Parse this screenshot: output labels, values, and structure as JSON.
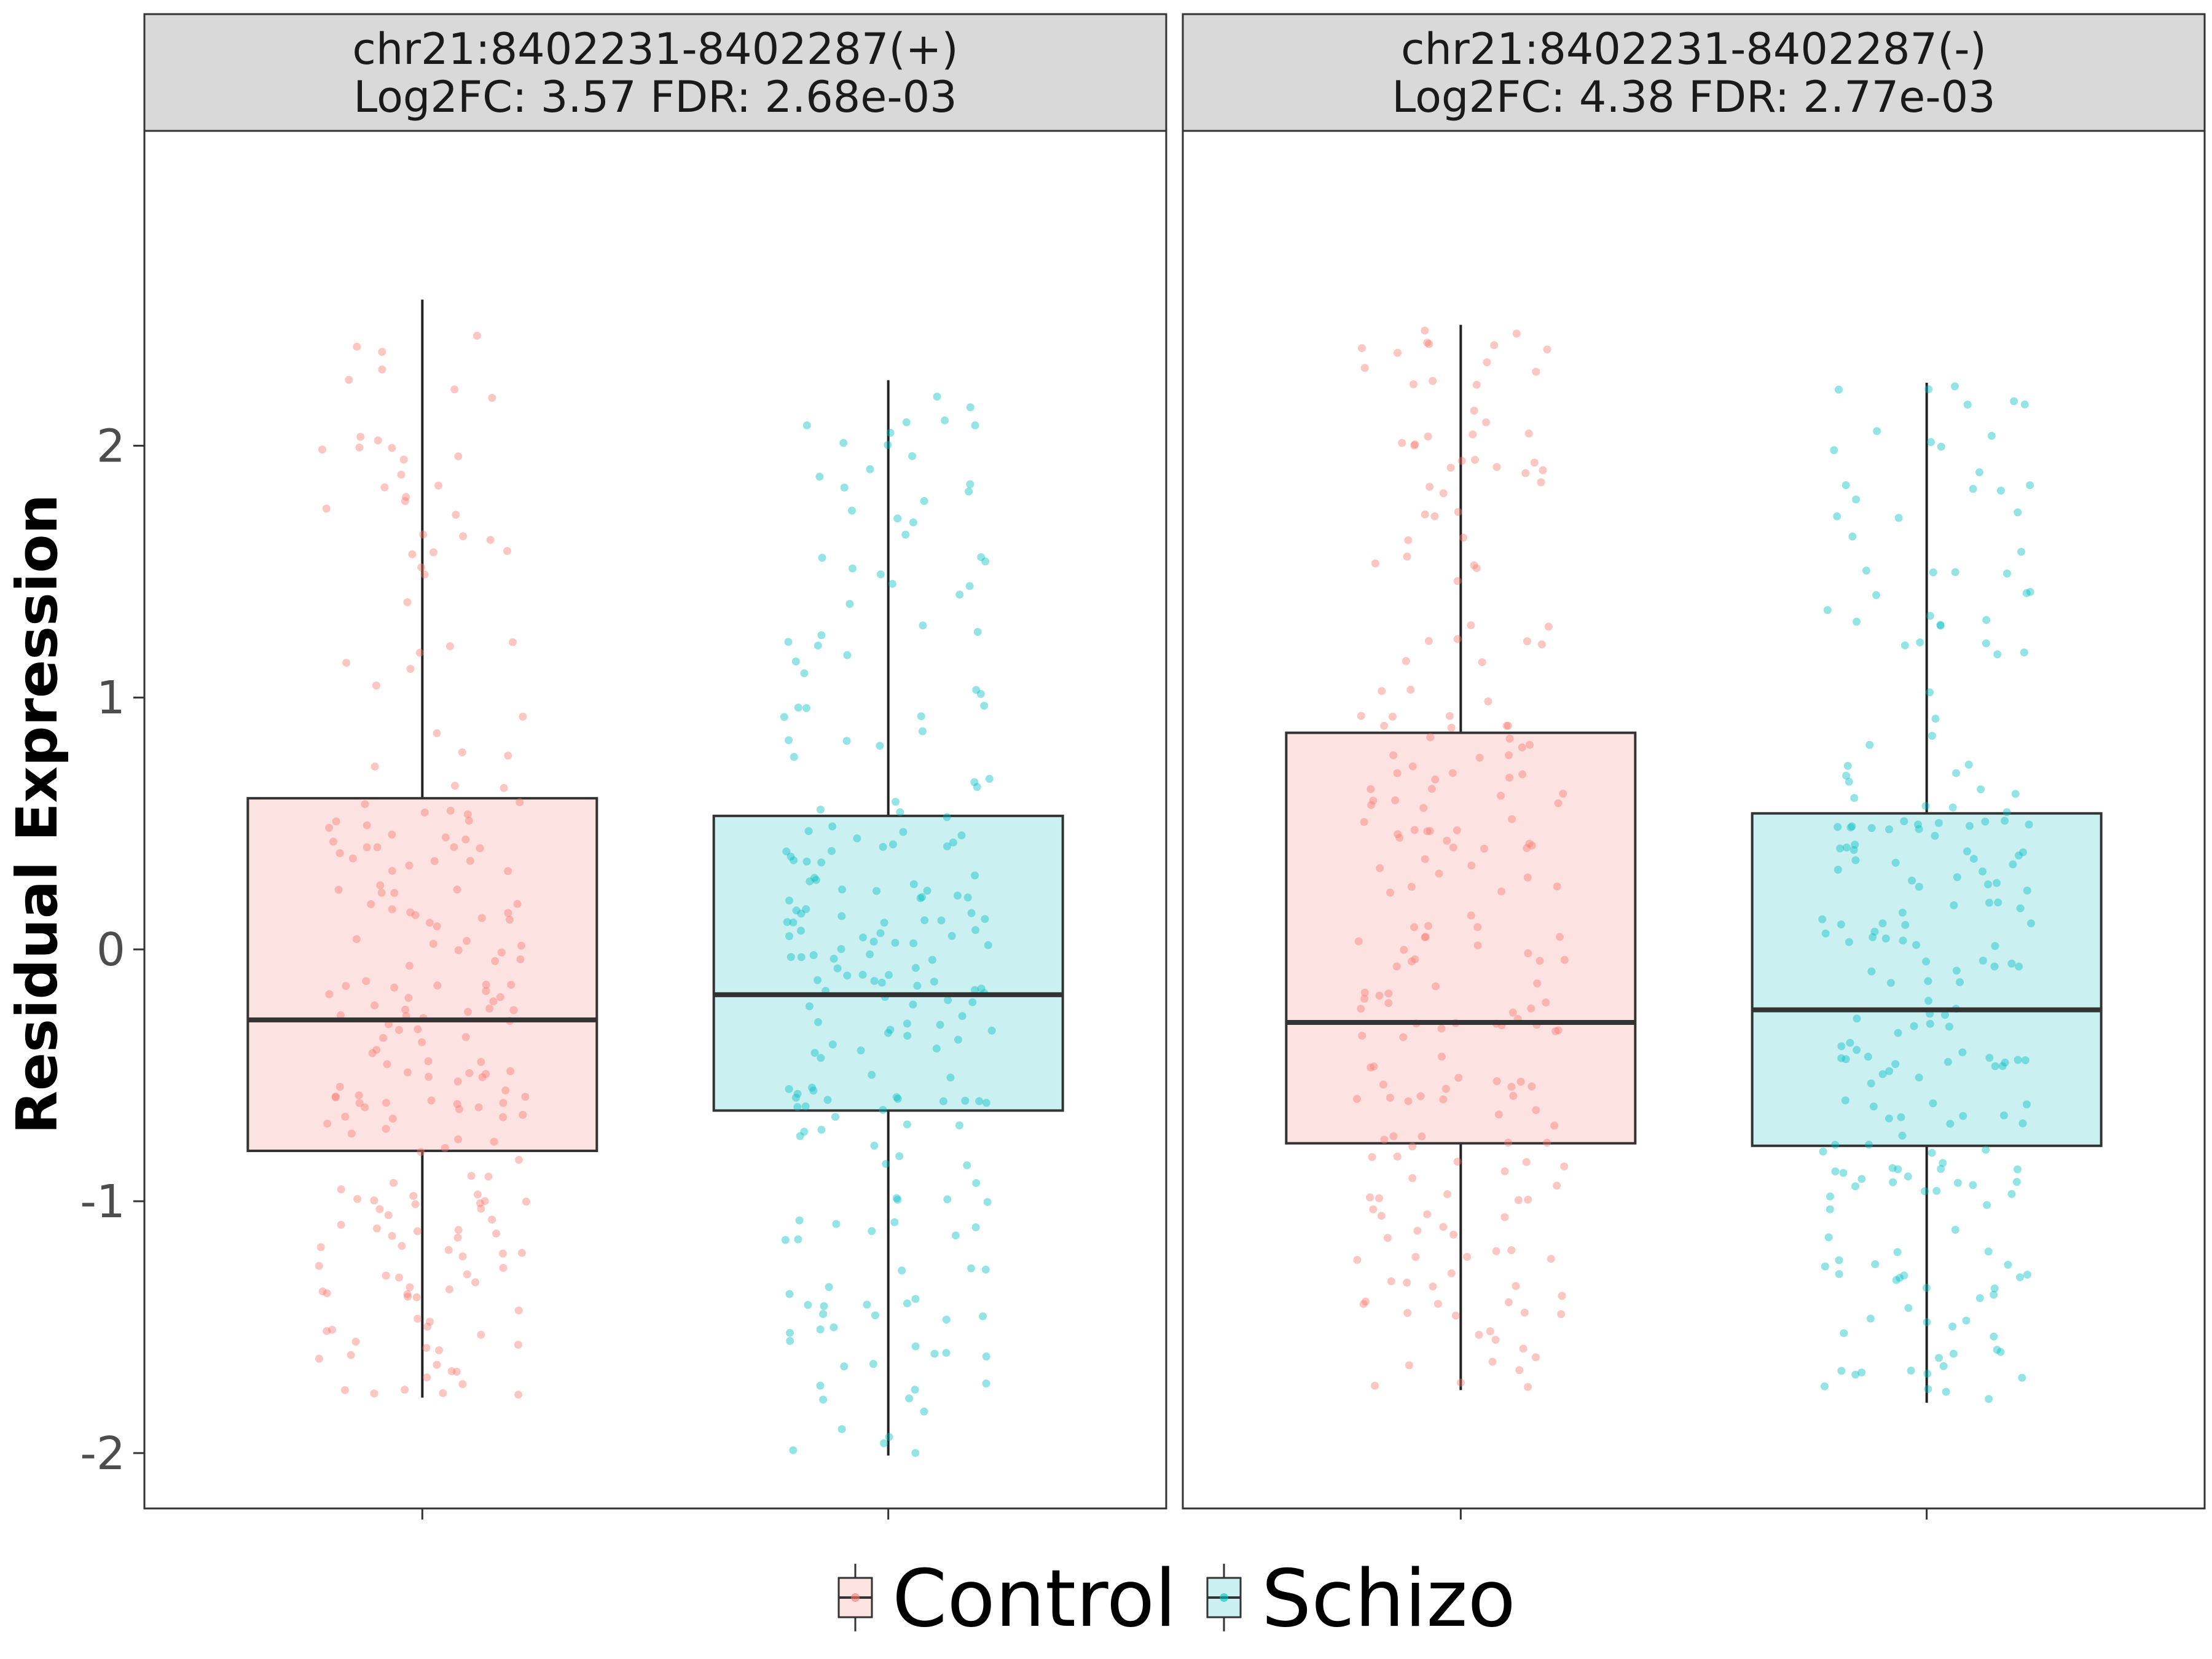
{
  "chart_data": {
    "type": "boxplot",
    "ylabel": "Residual Expression",
    "ylim": [
      -2.22,
      3.25
    ],
    "yticks": [
      -2,
      -1,
      0,
      1,
      2
    ],
    "ytick_labels": [
      "-2",
      "-1",
      "0",
      "1",
      "2"
    ],
    "grid": false,
    "legend_position": "bottom",
    "legend": [
      {
        "name": "Control",
        "fill": "#fde2e2",
        "point": "#f8766d"
      },
      {
        "name": "Schizo",
        "fill": "#cbf0f1",
        "point": "#00bfc4"
      }
    ],
    "panels": [
      {
        "title_line1": "chr21:8402231-8402287(+)",
        "title_line2": "Log2FC: 3.57 FDR: 2.68e-03",
        "boxes": [
          {
            "group": "Control",
            "whisker_low": -1.78,
            "q1": -0.8,
            "median": -0.28,
            "q3": 0.6,
            "whisker_high": 2.58
          },
          {
            "group": "Schizo",
            "whisker_low": -2.01,
            "q1": -0.64,
            "median": -0.18,
            "q3": 0.53,
            "whisker_high": 2.26
          }
        ]
      },
      {
        "title_line1": "chr21:8402231-8402287(-)",
        "title_line2": "Log2FC: 4.38 FDR: 2.77e-03",
        "boxes": [
          {
            "group": "Control",
            "whisker_low": -1.75,
            "q1": -0.77,
            "median": -0.29,
            "q3": 0.86,
            "whisker_high": 2.48
          },
          {
            "group": "Schizo",
            "whisker_low": -1.8,
            "q1": -0.78,
            "median": -0.24,
            "q3": 0.54,
            "whisker_high": 2.25
          }
        ]
      }
    ]
  }
}
